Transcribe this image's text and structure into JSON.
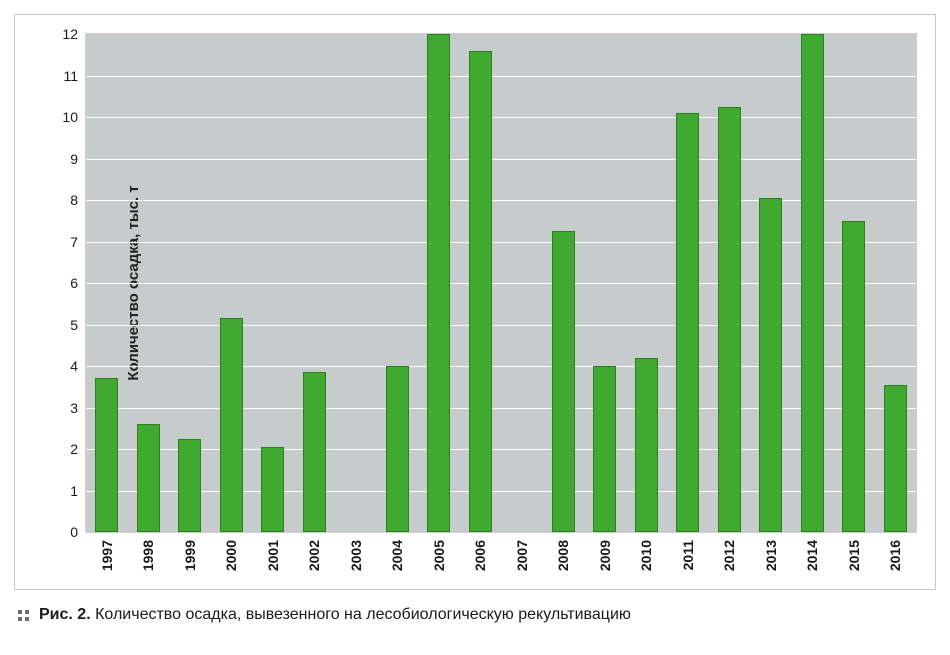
{
  "chart": {
    "type": "bar",
    "categories": [
      "1997",
      "1998",
      "1999",
      "2000",
      "2001",
      "2002",
      "2003",
      "2004",
      "2005",
      "2006",
      "2007",
      "2008",
      "2009",
      "2010",
      "2011",
      "2012",
      "2013",
      "2014",
      "2015",
      "2016"
    ],
    "values": [
      3.7,
      2.6,
      2.25,
      5.15,
      2.05,
      3.85,
      0,
      4.0,
      12.0,
      11.6,
      0,
      7.25,
      4.0,
      4.2,
      10.1,
      10.25,
      8.05,
      12.0,
      7.5,
      3.55
    ],
    "bar_colors": [
      "#3fa930",
      "#3fa930",
      "#3fa930",
      "#3fa930",
      "#3fa930",
      "#3fa930",
      "#3fa930",
      "#3fa930",
      "#3fa930",
      "#3fa930",
      "#3fa930",
      "#3fa930",
      "#3fa930",
      "#3fa930",
      "#3fa930",
      "#3fa930",
      "#3fa930",
      "#3fa930",
      "#3fa930",
      "#3fa930"
    ],
    "bar_border_color": "#2e7d1e",
    "ylabel": "Количество осадка, тыс. т",
    "ylim": [
      0,
      12
    ],
    "ytick_step": 1,
    "yticks": [
      0,
      1,
      2,
      3,
      4,
      5,
      6,
      7,
      8,
      9,
      10,
      11,
      12
    ],
    "plot_bg_color": "#c6cccc",
    "grid_color": "#ffffff",
    "frame_border_color": "#c8c8c8",
    "xtick_label_fontsize": 14,
    "ytick_label_fontsize": 14,
    "ylabel_fontsize": 15,
    "bar_width_ratio": 0.55,
    "xtick_font_weight": "bold"
  },
  "caption": {
    "prefix": "Рис. 2.",
    "text": "Количество осадка, вывезенного на лесобиологическую рекультивацию"
  }
}
